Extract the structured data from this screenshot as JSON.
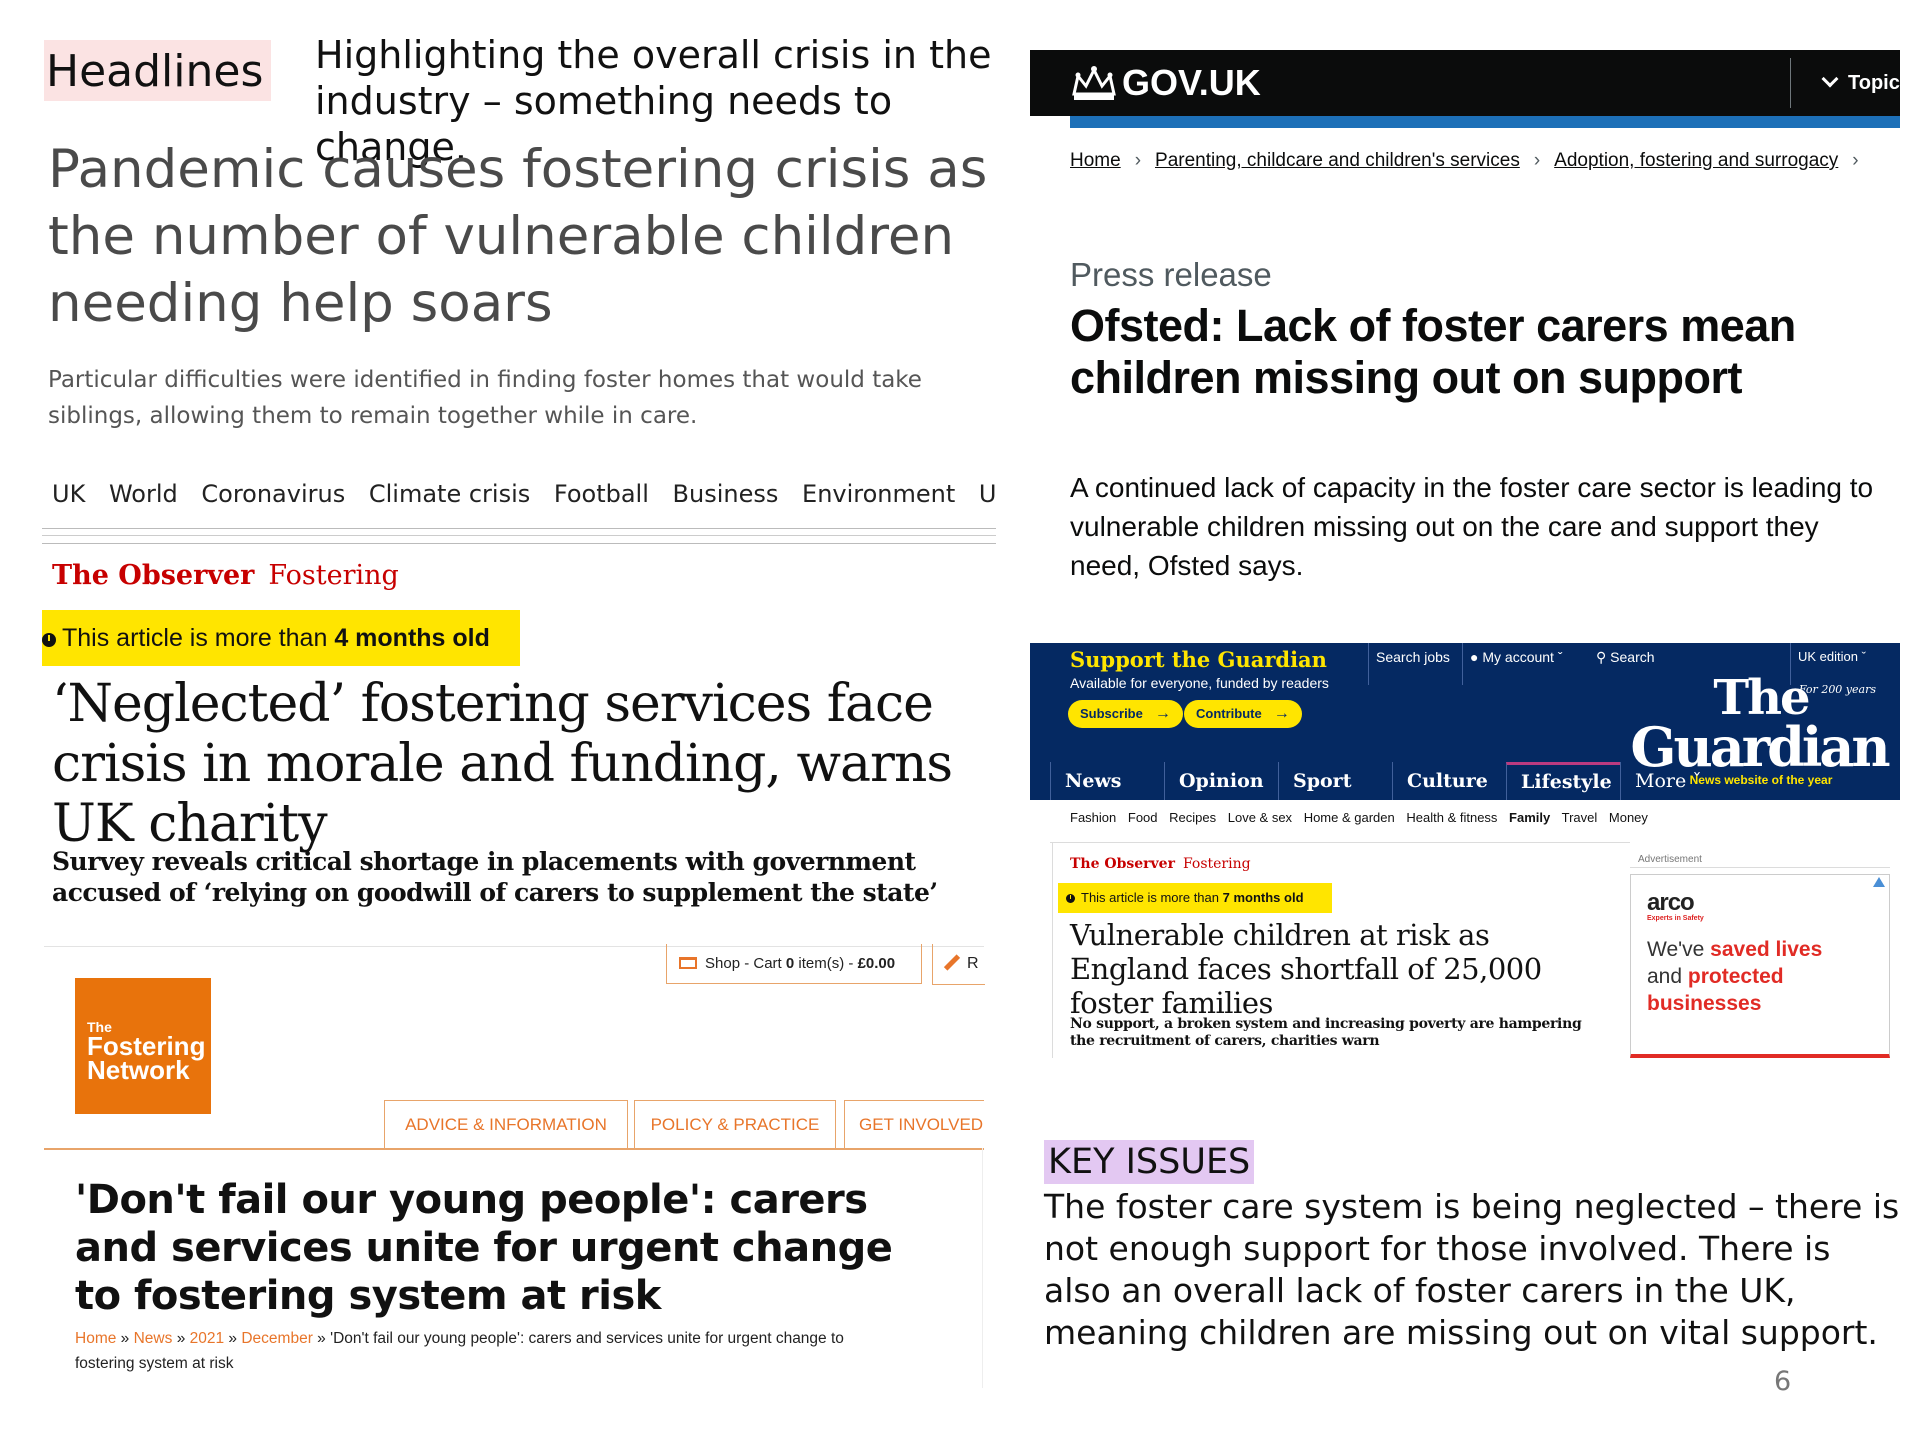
{
  "slide": {
    "headlines_tag": "Headlines",
    "headlines_desc": "Highlighting the overall crisis in the industry – something needs to change.",
    "key_issues_tag": "KEY ISSUES",
    "key_issues_text": "The foster care system is being neglected – there is not enough support for those involved. There is also an overall lack of foster carers in the UK, meaning children are missing out on vital support.",
    "page_number": "6"
  },
  "sky": {
    "headline": "Pandemic causes fostering crisis as the number of vulnerable children needing help soars",
    "subhead": "Particular difficulties were identified in finding foster homes that would take siblings, allowing them to remain together while in care.",
    "nav": [
      "UK",
      "World",
      "Coronavirus",
      "Climate crisis",
      "Football",
      "Business",
      "Environment",
      "UK politics"
    ]
  },
  "observer1": {
    "brand": "The Observer",
    "section": "Fostering",
    "age_prefix": "This article is more than",
    "age_value": "4 months old",
    "headline": "‘Neglected’ fostering services face crisis in morale and funding, warns UK charity",
    "subhead": "Survey reveals critical shortage in placements with government accused of ‘relying on goodwill of carers to supplement the state’"
  },
  "fostering_network": {
    "cart_prefix": "Shop - Cart",
    "cart_count": "0",
    "cart_mid": "item(s) -",
    "cart_total": "£0.00",
    "edit_label": "R",
    "logo_line1": "The",
    "logo_line2": "Fostering",
    "logo_line3": "Network",
    "tabs": [
      "ADVICE & INFORMATION",
      "POLICY & PRACTICE",
      "GET INVOLVED"
    ],
    "headline": "'Don't fail our young people': carers and services unite for urgent change to fostering system at risk",
    "crumbs": [
      "Home",
      "News",
      "2021",
      "December"
    ],
    "crumb_sep": "»",
    "crumb_current": "'Don't fail our young people': carers and services unite for urgent change to fostering system at risk"
  },
  "govuk": {
    "logo": "GOV.UK",
    "topics": "Topic",
    "breadcrumbs": [
      "Home",
      "Parenting, childcare and children's services",
      "Adoption, fostering and surrogacy"
    ],
    "doc_type": "Press release",
    "headline": "Ofsted: Lack of foster carers mean children missing out on support",
    "lead": "A continued lack of capacity in the foster care sector is leading to vulnerable children missing out on the care and support they need, Ofsted says."
  },
  "guardian": {
    "support": "Support the Guardian",
    "available": "Available for everyone, funded by readers",
    "subscribe": "Subscribe",
    "contribute": "Contribute",
    "search_jobs": "Search jobs",
    "my_account": "My account",
    "search": "Search",
    "edition": "UK edition",
    "logo_the": "The",
    "logo_guardian": "Guardian",
    "for200": "For 200 years",
    "tagline": "News website of the year",
    "nav": [
      "News",
      "Opinion",
      "Sport",
      "Culture",
      "Lifestyle",
      "More"
    ],
    "subnav": [
      "Fashion",
      "Food",
      "Recipes",
      "Love & sex",
      "Home & garden",
      "Health & fitness",
      "Family",
      "Travel",
      "Money"
    ],
    "brand": "The Observer",
    "section": "Fostering",
    "age_prefix": "This article is more than",
    "age_value": "7 months old",
    "headline": "Vulnerable children at risk as England faces shortfall of 25,000 foster families",
    "subhead": "No support, a broken system and increasing poverty are hampering the recruitment of carers, charities warn",
    "ad_label": "Advertisement",
    "ad_brand": "arco",
    "ad_brand_sub": "Experts in Safety",
    "ad_w1": "We've",
    "ad_w2": "saved lives",
    "ad_w3": "and",
    "ad_w4": "protected",
    "ad_w5": "businesses"
  },
  "colors": {
    "guardian_blue": "#052962",
    "guardian_yellow": "#ffe500",
    "observer_red": "#c70000",
    "govuk_black": "#0b0c0c",
    "govuk_blue": "#1d70b8",
    "fostering_orange": "#e8730c"
  }
}
